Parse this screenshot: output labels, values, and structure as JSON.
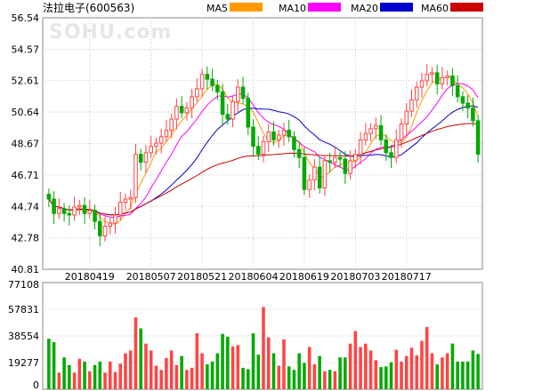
{
  "header": {
    "title": "法拉电子(600563)",
    "watermark": "SOHU.com"
  },
  "legend": [
    {
      "label": "MA5",
      "color": "#ff9900"
    },
    {
      "label": "MA10",
      "color": "#ff00ff"
    },
    {
      "label": "MA20",
      "color": "#0000cc"
    },
    {
      "label": "MA60",
      "color": "#cc0000"
    }
  ],
  "colors": {
    "up": "#ff4444",
    "down": "#00aa00",
    "grid": "#c8c8c8",
    "frame": "#888888"
  },
  "chart_data": [
    {
      "type": "candlestick",
      "title": "法拉电子(600563)",
      "yticks": [
        "56.54",
        "54.57",
        "52.61",
        "50.64",
        "48.67",
        "46.71",
        "44.74",
        "42.78",
        "40.81"
      ],
      "ylim": [
        40.81,
        56.54
      ],
      "xticks": [
        {
          "label": "20180419",
          "index": 8
        },
        {
          "label": "20180507",
          "index": 20
        },
        {
          "label": "20180521",
          "index": 30
        },
        {
          "label": "20180604",
          "index": 40
        },
        {
          "label": "20180619",
          "index": 50
        },
        {
          "label": "20180703",
          "index": 60
        },
        {
          "label": "20180717",
          "index": 70
        }
      ],
      "close": [
        45.2,
        44.3,
        44.6,
        44.3,
        44.2,
        44.7,
        44.8,
        44.3,
        44.5,
        43.8,
        42.9,
        43.5,
        43.7,
        44.2,
        45.0,
        45.2,
        45.3,
        48.0,
        47.5,
        48.1,
        48.5,
        48.7,
        49.1,
        49.5,
        50.2,
        51.0,
        50.6,
        50.9,
        51.6,
        52.1,
        53.0,
        52.7,
        52.3,
        51.9,
        50.5,
        50.2,
        51.3,
        52.2,
        51.5,
        49.7,
        48.5,
        48.0,
        48.8,
        49.4,
        48.9,
        49.2,
        49.5,
        49.1,
        48.3,
        47.8,
        45.8,
        46.4,
        47.2,
        45.9,
        47.6,
        47.5,
        47.8,
        47.7,
        46.8,
        47.6,
        48.0,
        48.9,
        49.3,
        49.6,
        49.8,
        48.9,
        48.1,
        47.8,
        48.9,
        49.9,
        50.7,
        51.4,
        52.2,
        52.6,
        53.0,
        53.1,
        52.4,
        52.8,
        52.9,
        52.3,
        51.6,
        51.2,
        50.9,
        50.1,
        48.0
      ],
      "volume": [
        36500,
        34000,
        12000,
        23000,
        17500,
        12000,
        22000,
        20000,
        13000,
        17500,
        20000,
        12000,
        20000,
        12500,
        18500,
        26000,
        28000,
        52000,
        44000,
        33000,
        28000,
        17000,
        14000,
        22500,
        28000,
        17500,
        24000,
        14000,
        15500,
        40500,
        26000,
        18000,
        20000,
        26000,
        40000,
        38000,
        31000,
        32000,
        15500,
        14500,
        40500,
        25000,
        59500,
        37500,
        26000,
        17000,
        36000,
        16500,
        14000,
        26000,
        19000,
        30500,
        18000,
        24000,
        13000,
        14000,
        13000,
        23000,
        23000,
        33000,
        42000,
        30500,
        33000,
        28000,
        21000,
        16000,
        16500,
        19500,
        28500,
        20000,
        24000,
        30000,
        24500,
        35000,
        45000,
        26000,
        18000,
        23000,
        26000,
        33000,
        20000,
        20000,
        20000,
        28000,
        25500
      ],
      "volume_ticks": [
        "77108",
        "57831",
        "38554",
        "19277",
        "0"
      ],
      "volume_max": 77108,
      "first_open": 45.5
    }
  ]
}
